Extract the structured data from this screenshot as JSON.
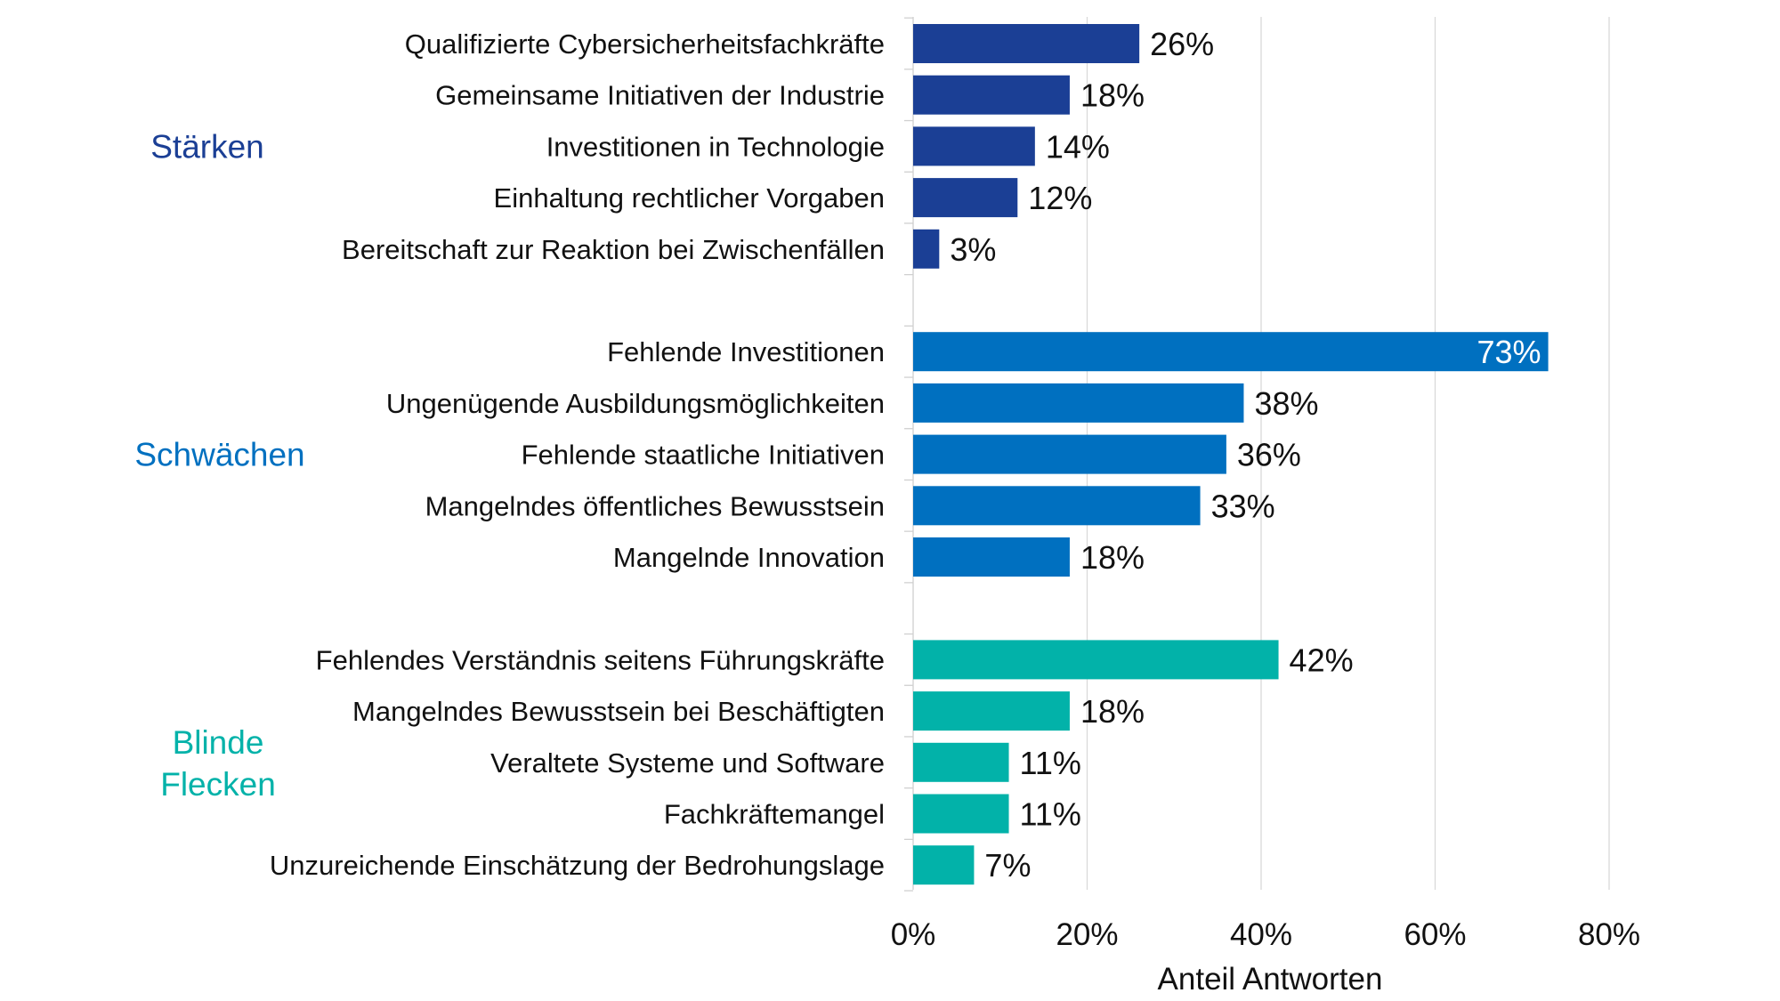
{
  "chart_data": {
    "type": "bar",
    "orientation": "horizontal",
    "xlabel": "Anteil Antworten",
    "xlim": [
      0,
      80
    ],
    "xticks": [
      "0%",
      "20%",
      "40%",
      "60%",
      "80%"
    ],
    "grid": "vertical",
    "groups": [
      {
        "name": "Stärken",
        "color": "#1B3F95",
        "categories": [
          "Qualifizierte Cybersicherheitsfachkräfte",
          "Gemeinsame Initiativen der Industrie",
          "Investitionen in Technologie",
          "Einhaltung rechtlicher Vorgaben",
          "Bereitschaft zur Reaktion bei Zwischenfällen"
        ],
        "values": [
          26,
          18,
          14,
          12,
          3
        ],
        "labels": [
          "26%",
          "18%",
          "14%",
          "12%",
          "3%"
        ]
      },
      {
        "name": "Schwächen",
        "color": "#0070C0",
        "categories": [
          "Fehlende Investitionen",
          "Ungenügende Ausbildungsmöglichkeiten",
          "Fehlende staatliche Initiativen",
          "Mangelndes öffentliches Bewusstsein",
          "Mangelnde Innovation"
        ],
        "values": [
          73,
          38,
          36,
          33,
          18
        ],
        "labels": [
          "73%",
          "38%",
          "36%",
          "33%",
          "18%"
        ]
      },
      {
        "name": "Blinde Flecken",
        "color": "#02B2A9",
        "categories": [
          "Fehlendes Verständnis seitens Führungskräfte",
          "Mangelndes Bewusstsein bei Beschäftigten",
          "Veraltete Systeme und Software",
          "Fachkräftemangel",
          "Unzureichende Einschätzung der Bedrohungslage"
        ],
        "values": [
          42,
          18,
          11,
          11,
          7
        ],
        "labels": [
          "42%",
          "18%",
          "11%",
          "11%",
          "7%"
        ]
      }
    ]
  }
}
